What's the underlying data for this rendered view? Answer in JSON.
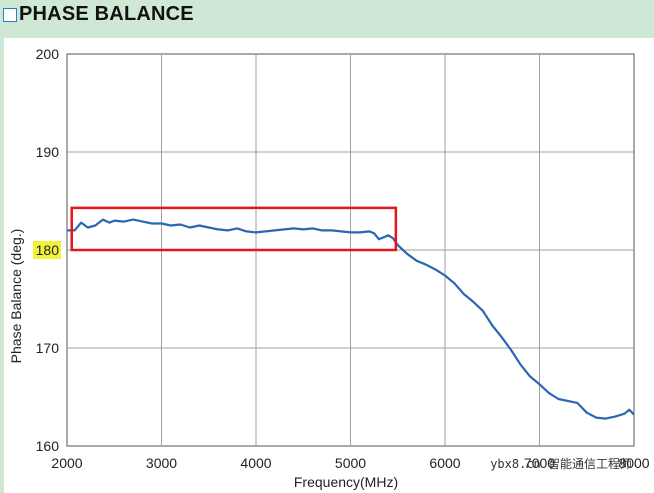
{
  "header": {
    "title": "PHASE BALANCE"
  },
  "watermark": "ybx8.cn 智能通信工程师",
  "chart_data": {
    "type": "line",
    "title": "PHASE BALANCE",
    "xlabel": "Frequency(MHz)",
    "ylabel": "Phase Balance (deg.)",
    "xlim": [
      2000,
      8000
    ],
    "ylim": [
      160,
      200
    ],
    "x_ticks": [
      "2000",
      "3000",
      "4000",
      "5000",
      "6000",
      "7000",
      "8000"
    ],
    "y_ticks": [
      "160",
      "170",
      "180",
      "190",
      "200"
    ],
    "highlighted_tick": "180",
    "grid": true,
    "highlight_box": {
      "x": [
        2050,
        5480
      ],
      "y": [
        180.0,
        184.3
      ],
      "color": "#e8141b"
    },
    "series": [
      {
        "color": "#2a67b3",
        "x": [
          2000,
          2080,
          2150,
          2220,
          2300,
          2380,
          2450,
          2500,
          2600,
          2700,
          2800,
          2900,
          3000,
          3100,
          3200,
          3300,
          3400,
          3500,
          3600,
          3700,
          3800,
          3900,
          4000,
          4100,
          4200,
          4300,
          4400,
          4500,
          4600,
          4700,
          4800,
          4900,
          5000,
          5100,
          5200,
          5250,
          5300,
          5350,
          5400,
          5450,
          5500,
          5600,
          5700,
          5800,
          5900,
          6000,
          6100,
          6200,
          6300,
          6400,
          6500,
          6600,
          6700,
          6800,
          6900,
          7000,
          7100,
          7200,
          7300,
          7400,
          7500,
          7600,
          7700,
          7800,
          7900,
          7950,
          8000
        ],
        "y": [
          182.0,
          182.0,
          182.8,
          182.3,
          182.5,
          183.1,
          182.8,
          183.0,
          182.9,
          183.1,
          182.9,
          182.7,
          182.7,
          182.5,
          182.6,
          182.3,
          182.5,
          182.3,
          182.1,
          182.0,
          182.2,
          181.9,
          181.8,
          181.9,
          182.0,
          182.1,
          182.2,
          182.1,
          182.2,
          182.0,
          182.0,
          181.9,
          181.8,
          181.8,
          181.9,
          181.7,
          181.1,
          181.3,
          181.5,
          181.2,
          180.5,
          179.6,
          178.9,
          178.5,
          178.0,
          177.4,
          176.6,
          175.5,
          174.7,
          173.8,
          172.3,
          171.1,
          169.8,
          168.3,
          167.1,
          166.3,
          165.4,
          164.8,
          164.6,
          164.4,
          163.4,
          162.9,
          162.8,
          163.0,
          163.3,
          163.7,
          163.2
        ]
      }
    ]
  }
}
